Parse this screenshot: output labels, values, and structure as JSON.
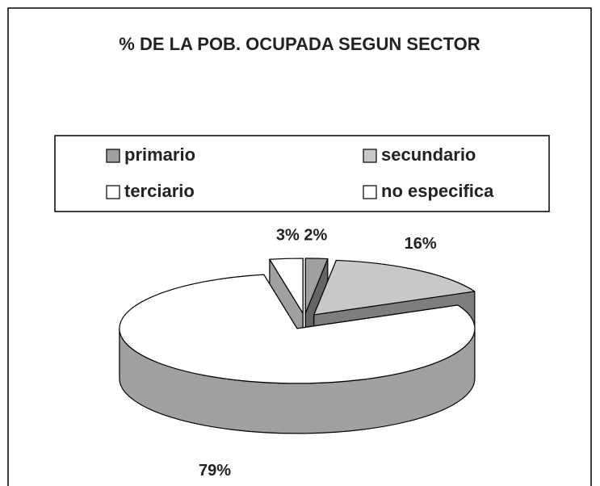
{
  "chart_data": {
    "type": "pie3d",
    "title": "% DE LA POB. OCUPADA SEGUN SECTOR",
    "categories": [
      "primario",
      "secundario",
      "terciario",
      "no especifica"
    ],
    "values": [
      2,
      16,
      79,
      3
    ],
    "value_labels": [
      "2%",
      "16%",
      "79%",
      "3%"
    ],
    "colors": [
      "#a0a0a0",
      "#c8c8c8",
      "#ffffff",
      "#ffffff"
    ],
    "legend": "top"
  }
}
